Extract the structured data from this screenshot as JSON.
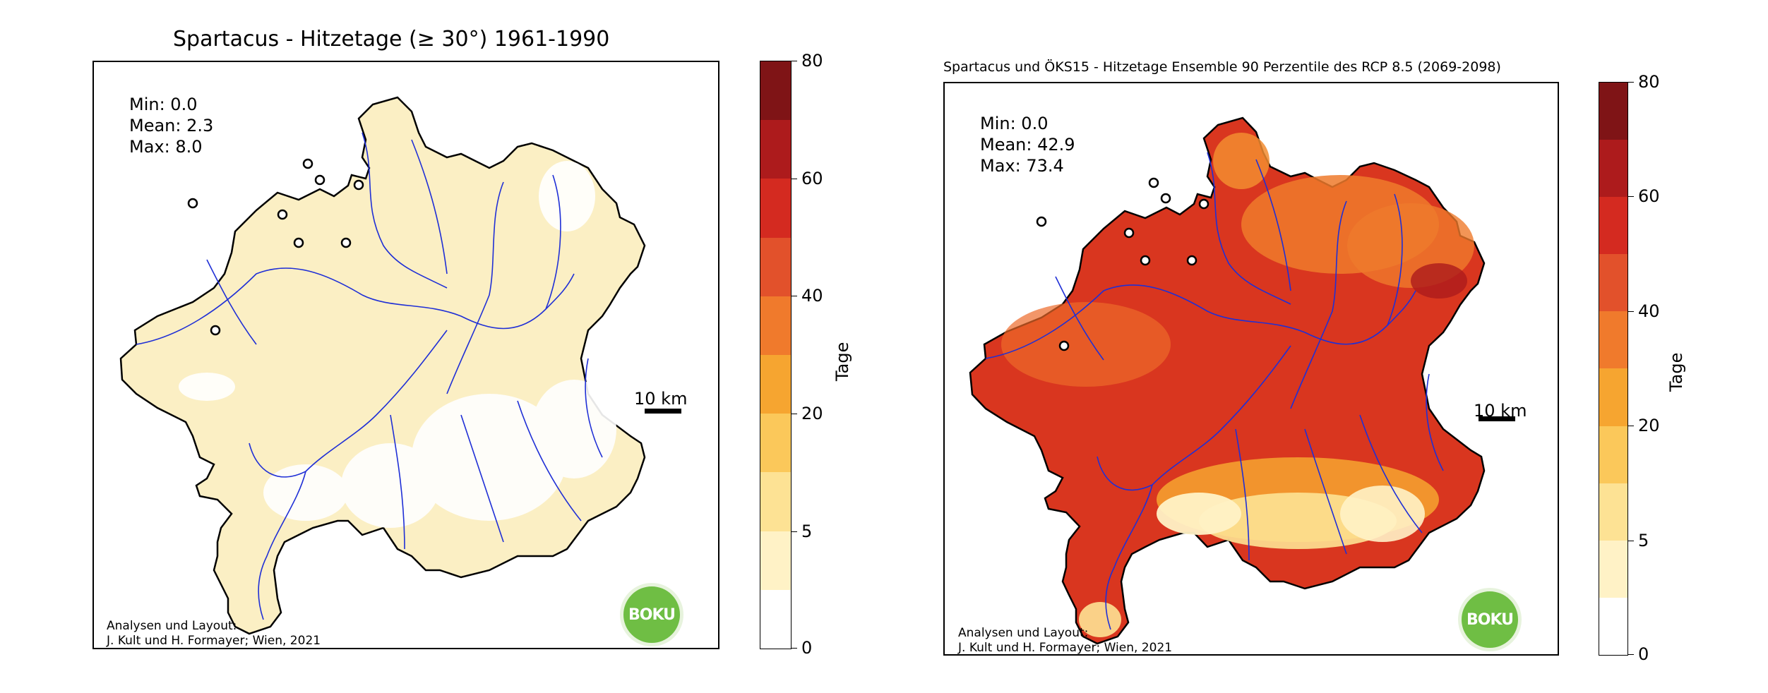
{
  "maps": [
    {
      "title": "Spartacus - Hitzetage (≥ 30°) 1961-1990",
      "stats": {
        "min": "Min: 0.0",
        "mean": "Mean: 2.3",
        "max": "Max: 8.0"
      },
      "scalebar": "10 km",
      "credit_line1": "Analysen und Layout:",
      "credit_line2": "J. Kult und H. Formayer; Wien, 2021",
      "logo": "BOKU",
      "fill_color": "#fbefc4",
      "colorbar": {
        "label": "Tage",
        "ticks": [
          "80",
          "60",
          "40",
          "20",
          "5",
          "0"
        ]
      }
    },
    {
      "title": "Spartacus und ÖKS15 - Hitzetage Ensemble 90 Perzentile des RCP 8.5 (2069-2098)",
      "stats": {
        "min": "Min: 0.0",
        "mean": "Mean: 42.9",
        "max": "Max: 73.4"
      },
      "scalebar": "10 km",
      "credit_line1": "Analysen und Layout:",
      "credit_line2": "J. Kult und H. Formayer; Wien, 2021",
      "logo": "BOKU",
      "fill_color": "#d9361f",
      "colorbar": {
        "label": "Tage",
        "ticks": [
          "80",
          "60",
          "40",
          "20",
          "5",
          "0"
        ]
      }
    }
  ],
  "colorbar_colors": [
    "#7f1416",
    "#ad1b1c",
    "#d42a20",
    "#e2512b",
    "#f07a2c",
    "#f6a530",
    "#fbc85a",
    "#fde294",
    "#fff2c6",
    "#ffffff"
  ],
  "river_color": "#1f2fd6"
}
